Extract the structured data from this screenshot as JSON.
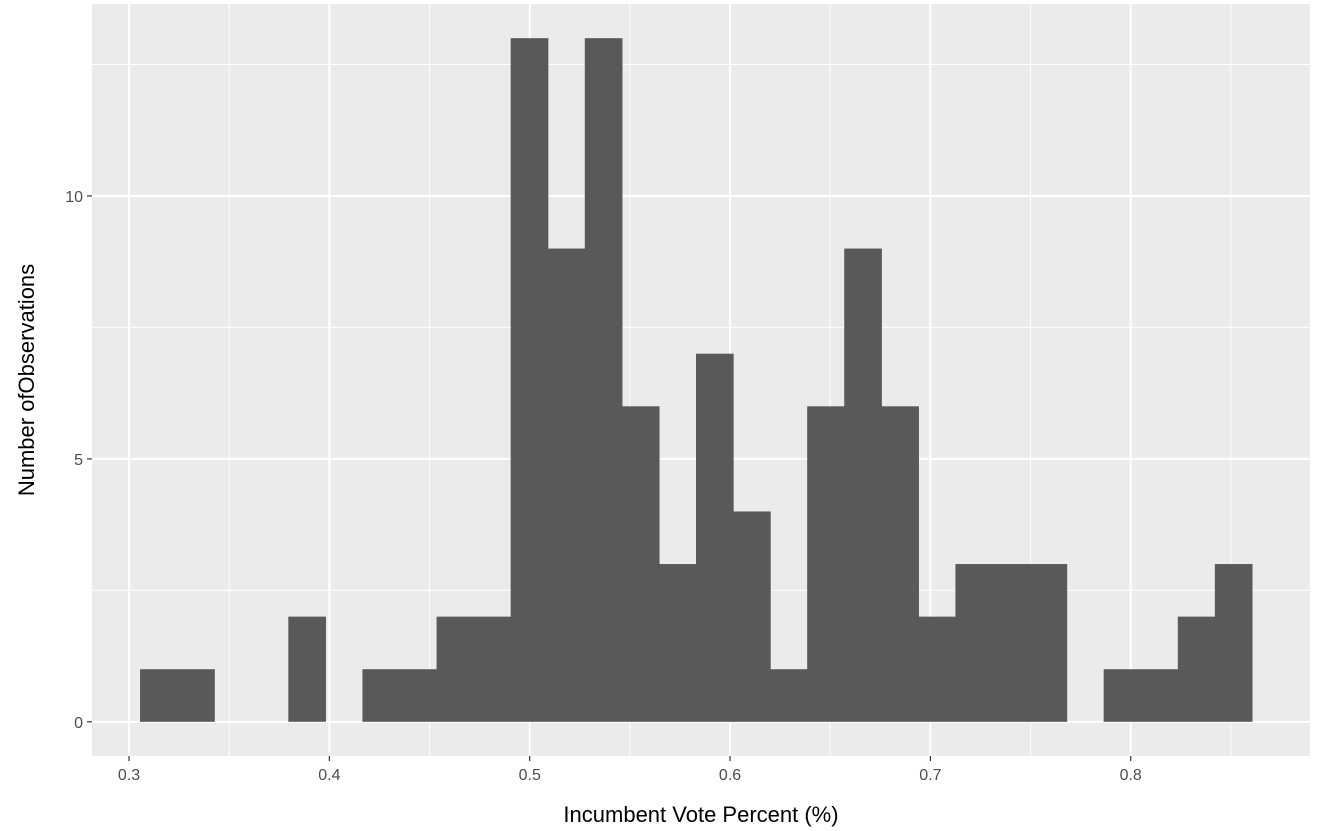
{
  "chart_data": {
    "type": "histogram",
    "xlabel": "Incumbent Vote Percent (%)",
    "ylabel": "Number ofObservations",
    "xlim": [
      0.2815,
      0.8895
    ],
    "ylim": [
      -0.65,
      13.65
    ],
    "x_ticks": [
      0.3,
      0.4,
      0.5,
      0.6,
      0.7,
      0.8
    ],
    "x_tick_labels": [
      "0.3",
      "0.4",
      "0.5",
      "0.6",
      "0.7",
      "0.8"
    ],
    "y_ticks": [
      0,
      5,
      10
    ],
    "y_tick_labels": [
      "0",
      "5",
      "10"
    ],
    "bin_start": 0.3055,
    "bin_width": 0.0185,
    "counts": [
      1,
      1,
      0,
      0,
      2,
      0,
      1,
      1,
      2,
      2,
      13,
      9,
      13,
      6,
      3,
      7,
      4,
      1,
      6,
      9,
      6,
      2,
      3,
      3,
      3,
      0,
      1,
      1,
      2,
      3
    ],
    "grid": true,
    "legend": "none",
    "colors": {
      "panel": "#ebebeb",
      "grid": "#ffffff",
      "bar": "#595959",
      "tick": "#333333"
    }
  }
}
